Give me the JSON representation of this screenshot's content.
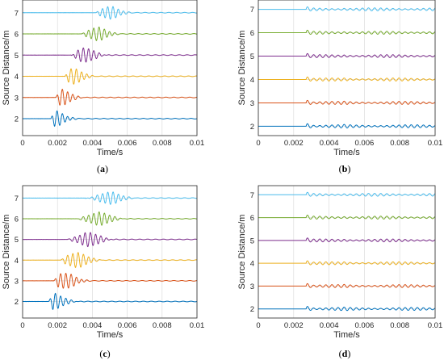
{
  "colors": [
    "#0072BD",
    "#D95319",
    "#EDB120",
    "#7E2F8E",
    "#77AC30",
    "#4DBEEE"
  ],
  "chart_data": [
    {
      "panel": "(a)",
      "type": "line",
      "xlabel": "Time/s",
      "ylabel": "Source Distance/m",
      "xlim": [
        0,
        0.01
      ],
      "ylim": [
        1.2,
        7.6
      ],
      "xticks": [
        "0",
        "0.002",
        "0.004",
        "0.006",
        "0.008",
        "0.01"
      ],
      "yticks": [
        "2",
        "3",
        "4",
        "5",
        "6",
        "7"
      ],
      "grid": true,
      "series": [
        {
          "offset": 2,
          "arrival": 0.0016,
          "peak": 0.0017,
          "amp": 0.95,
          "decay": 0.0008,
          "freq": 3300
        },
        {
          "offset": 3,
          "arrival": 0.0019,
          "peak": 0.0022,
          "amp": 0.9,
          "decay": 0.0007,
          "freq": 3300
        },
        {
          "offset": 4,
          "arrival": 0.0024,
          "peak": 0.0029,
          "amp": 0.85,
          "decay": 0.0007,
          "freq": 3300
        },
        {
          "offset": 5,
          "arrival": 0.0028,
          "peak": 0.0036,
          "amp": 0.8,
          "decay": 0.0007,
          "freq": 3300
        },
        {
          "offset": 6,
          "arrival": 0.0034,
          "peak": 0.0043,
          "amp": 0.75,
          "decay": 0.0007,
          "freq": 3300
        },
        {
          "offset": 7,
          "arrival": 0.0042,
          "peak": 0.005,
          "amp": 0.7,
          "decay": 0.0007,
          "freq": 3300
        }
      ]
    },
    {
      "panel": "(b)",
      "type": "line",
      "xlabel": "Time/s",
      "ylabel": "Source Distance/m",
      "xlim": [
        0,
        0.01
      ],
      "ylim": [
        1.6,
        7.4
      ],
      "xticks": [
        "0",
        "0.002",
        "0.004",
        "0.006",
        "0.008",
        "0.01"
      ],
      "yticks": [
        "2",
        "3",
        "4",
        "5",
        "6",
        "7"
      ],
      "grid": true,
      "series": [
        {
          "offset": 2,
          "arrival": 0.0027,
          "amp": 0.38,
          "freq": 2900
        },
        {
          "offset": 3,
          "arrival": 0.0027,
          "amp": 0.38,
          "freq": 2900
        },
        {
          "offset": 4,
          "arrival": 0.0027,
          "amp": 0.38,
          "freq": 2900
        },
        {
          "offset": 5,
          "arrival": 0.0027,
          "amp": 0.38,
          "freq": 2900
        },
        {
          "offset": 6,
          "arrival": 0.0027,
          "amp": 0.38,
          "freq": 2900
        },
        {
          "offset": 7,
          "arrival": 0.0027,
          "amp": 0.38,
          "freq": 2900
        }
      ]
    },
    {
      "panel": "(c)",
      "type": "line",
      "xlabel": "Time/s",
      "ylabel": "Source Distance/m",
      "xlim": [
        0,
        0.01
      ],
      "ylim": [
        1.2,
        7.6
      ],
      "xticks": [
        "0",
        "0.002",
        "0.004",
        "0.006",
        "0.008",
        "0.01"
      ],
      "yticks": [
        "2",
        "3",
        "4",
        "5",
        "6",
        "7"
      ],
      "grid": true,
      "series": [
        {
          "offset": 2,
          "arrival": 0.0015,
          "peak": 0.0017,
          "amp": 0.95,
          "decay": 0.0008,
          "freq": 3300
        },
        {
          "offset": 3,
          "arrival": 0.0018,
          "peak": 0.0024,
          "amp": 0.9,
          "decay": 0.0008,
          "freq": 3300
        },
        {
          "offset": 4,
          "arrival": 0.0022,
          "peak": 0.0031,
          "amp": 0.85,
          "decay": 0.0008,
          "freq": 3300
        },
        {
          "offset": 5,
          "arrival": 0.0026,
          "peak": 0.0038,
          "amp": 0.8,
          "decay": 0.0008,
          "freq": 3300
        },
        {
          "offset": 6,
          "arrival": 0.0031,
          "peak": 0.0044,
          "amp": 0.75,
          "decay": 0.0008,
          "freq": 3300
        },
        {
          "offset": 7,
          "arrival": 0.0036,
          "peak": 0.005,
          "amp": 0.7,
          "decay": 0.0008,
          "freq": 3300
        }
      ]
    },
    {
      "panel": "(d)",
      "type": "line",
      "xlabel": "Time/s",
      "ylabel": "Source Distance/m",
      "xlim": [
        0,
        0.01
      ],
      "ylim": [
        1.6,
        7.4
      ],
      "xticks": [
        "0",
        "0.002",
        "0.004",
        "0.006",
        "0.008",
        "0.01"
      ],
      "yticks": [
        "2",
        "3",
        "4",
        "5",
        "6",
        "7"
      ],
      "grid": true,
      "series": [
        {
          "offset": 2,
          "arrival": 0.0027,
          "amp": 0.38,
          "freq": 2900
        },
        {
          "offset": 3,
          "arrival": 0.0027,
          "amp": 0.38,
          "freq": 2900
        },
        {
          "offset": 4,
          "arrival": 0.0027,
          "amp": 0.38,
          "freq": 2900
        },
        {
          "offset": 5,
          "arrival": 0.0027,
          "amp": 0.38,
          "freq": 2900
        },
        {
          "offset": 6,
          "arrival": 0.0027,
          "amp": 0.38,
          "freq": 2900
        },
        {
          "offset": 7,
          "arrival": 0.0027,
          "amp": 0.38,
          "freq": 2900
        }
      ]
    }
  ],
  "panel_labels": {
    "a": {
      "open": "(",
      "letter": "a",
      "close": ")"
    },
    "b": {
      "open": "(",
      "letter": "b",
      "close": ")"
    },
    "c": {
      "open": "(",
      "letter": "c",
      "close": ")"
    },
    "d": {
      "open": "(",
      "letter": "d",
      "close": ")"
    }
  }
}
